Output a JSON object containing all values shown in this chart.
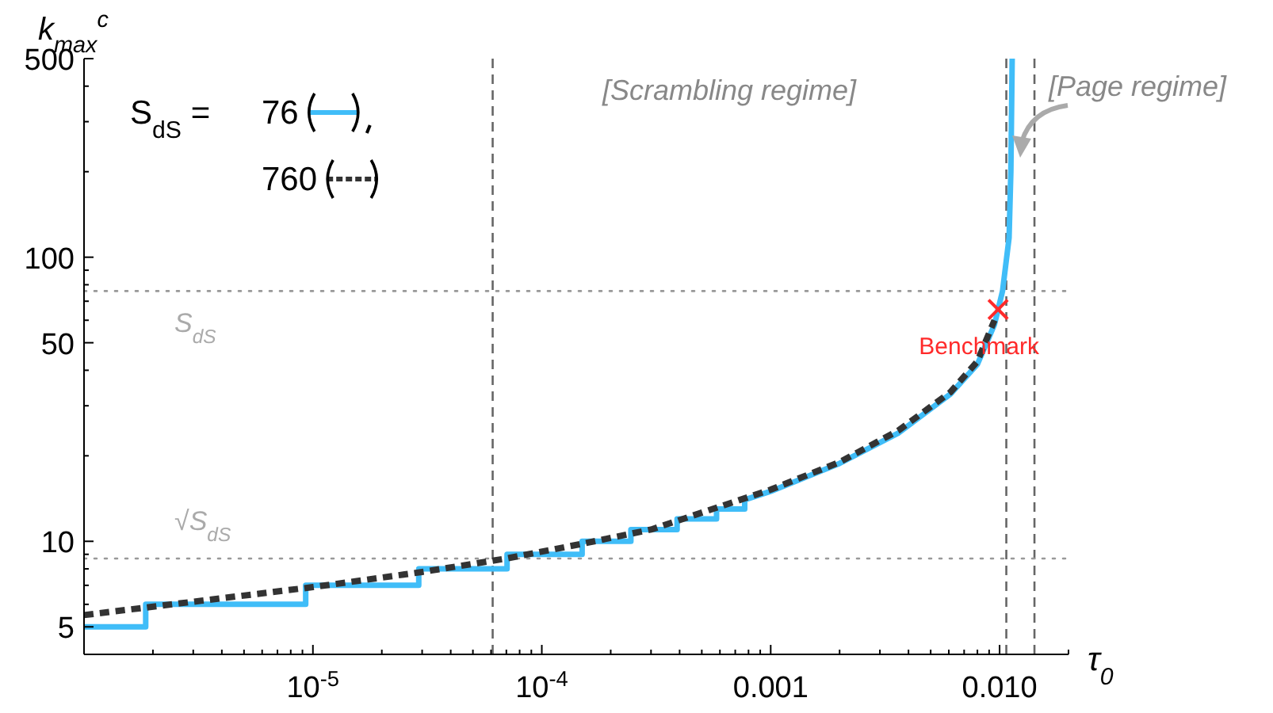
{
  "chart_data": {
    "type": "line",
    "xlabel": "τ$_{0}$",
    "ylabel": "k$_{max}$$^{c}$",
    "legend_title": "S$_{dS}$ =",
    "legend": "top left",
    "grid": false,
    "log": "xy",
    "xlim": [
      1e-06,
      0.02
    ],
    "ylim": [
      4,
      500
    ],
    "xticks": [
      {
        "value": 2e-06,
        "label": null
      },
      {
        "value": 3e-06,
        "label": null
      },
      {
        "value": 4e-06,
        "label": null
      },
      {
        "value": 5e-06,
        "label": null
      },
      {
        "value": 6e-06,
        "label": null
      },
      {
        "value": 7e-06,
        "label": null
      },
      {
        "value": 8e-06,
        "label": null
      },
      {
        "value": 9e-06,
        "label": null
      },
      {
        "value": 1e-05,
        "label": "10$^{-5}$"
      },
      {
        "value": 2e-05,
        "label": null
      },
      {
        "value": 3e-05,
        "label": null
      },
      {
        "value": 4e-05,
        "label": null
      },
      {
        "value": 5e-05,
        "label": null
      },
      {
        "value": 6e-05,
        "label": null
      },
      {
        "value": 7e-05,
        "label": null
      },
      {
        "value": 8e-05,
        "label": null
      },
      {
        "value": 9e-05,
        "label": null
      },
      {
        "value": 0.0001,
        "label": "10$^{-4}$"
      },
      {
        "value": 0.0002,
        "label": null
      },
      {
        "value": 0.0003,
        "label": null
      },
      {
        "value": 0.0004,
        "label": null
      },
      {
        "value": 0.0005,
        "label": null
      },
      {
        "value": 0.0006,
        "label": null
      },
      {
        "value": 0.0007,
        "label": null
      },
      {
        "value": 0.0008,
        "label": null
      },
      {
        "value": 0.0009,
        "label": null
      },
      {
        "value": 0.001,
        "label": "0.001"
      },
      {
        "value": 0.002,
        "label": null
      },
      {
        "value": 0.003,
        "label": null
      },
      {
        "value": 0.004,
        "label": null
      },
      {
        "value": 0.005,
        "label": null
      },
      {
        "value": 0.006,
        "label": null
      },
      {
        "value": 0.007,
        "label": null
      },
      {
        "value": 0.008,
        "label": null
      },
      {
        "value": 0.009,
        "label": null
      },
      {
        "value": 0.01,
        "label": "0.010"
      },
      {
        "value": 0.02,
        "label": null
      }
    ],
    "yticks": [
      5,
      {
        "value": 6,
        "label": null
      },
      {
        "value": 7,
        "label": null
      },
      {
        "value": 8,
        "label": null
      },
      {
        "value": 9,
        "label": null
      },
      10,
      {
        "value": 20,
        "label": null
      },
      {
        "value": 30,
        "label": null
      },
      {
        "value": 40,
        "label": null
      },
      50,
      {
        "value": 60,
        "label": null
      },
      {
        "value": 70,
        "label": null
      },
      {
        "value": 80,
        "label": null
      },
      {
        "value": 90,
        "label": null
      },
      100,
      {
        "value": 200,
        "label": null
      },
      {
        "value": 300,
        "label": null
      },
      {
        "value": 400,
        "label": null
      },
      500
    ],
    "series": [
      {
        "name": "76",
        "line_style": "solid",
        "color": "#40bdf8",
        "x": [
          1e-06,
          1.86e-06,
          1.86e-06,
          9.3e-06,
          9.3e-06,
          2.9e-05,
          2.9e-05,
          7.05e-05,
          7.05e-05,
          0.00015,
          0.00015,
          0.000245,
          0.000245,
          0.00039,
          0.00039,
          0.00058,
          0.00058,
          0.00077,
          0.00077,
          0.001,
          0.002,
          0.0036,
          0.0061,
          0.008,
          0.0095,
          0.0103,
          0.011,
          0.0112,
          0.01135
        ],
        "values": [
          5,
          5,
          6,
          6,
          7,
          7,
          8,
          8,
          9,
          9,
          10,
          10,
          11,
          11,
          12,
          12,
          13,
          13,
          14,
          15,
          18.8,
          24,
          33,
          42,
          58,
          76,
          117,
          200,
          500
        ]
      },
      {
        "name": "760",
        "line_style": "dashed",
        "color": "#333333",
        "x": [
          1e-06,
          1e-05,
          3e-05,
          7e-05,
          0.00015,
          0.0003,
          0.001,
          0.002,
          0.0036,
          0.0061,
          0.008,
          0.0095
        ],
        "values": [
          5.5,
          6.9,
          7.8,
          8.7,
          9.8,
          11,
          15.2,
          19,
          24.5,
          33.5,
          43,
          60
        ]
      },
      {
        "type": "scatter",
        "marker": "cross",
        "color": "#ff2a2a",
        "x": [
          0.00985
        ],
        "values": [
          65.5
        ]
      }
    ],
    "ref_lines": [
      {
        "axis": "x",
        "value": 6.1e-05,
        "line_style": "dashed",
        "color": "#666666"
      },
      {
        "axis": "x",
        "value": 0.0107,
        "line_style": "dashed",
        "color": "#666666"
      },
      {
        "axis": "x",
        "value": 0.0142,
        "line_style": "dashed",
        "color": "#666666"
      },
      {
        "axis": "y",
        "value": 76,
        "label": "S$_{dS}$",
        "line_style": "dotted",
        "color": "#999999"
      },
      {
        "axis": "y",
        "value": 8.7,
        "label": "√S$_{dS}$",
        "line_style": "dotted",
        "color": "#999999"
      }
    ],
    "annotations": [
      "[Scrambling regime]",
      {
        "text": "[Page regime]",
        "x": 0.011,
        "y": 230
      },
      {
        "text": "Benchmark",
        "x": 0.00985,
        "y": 65.5
      }
    ]
  }
}
